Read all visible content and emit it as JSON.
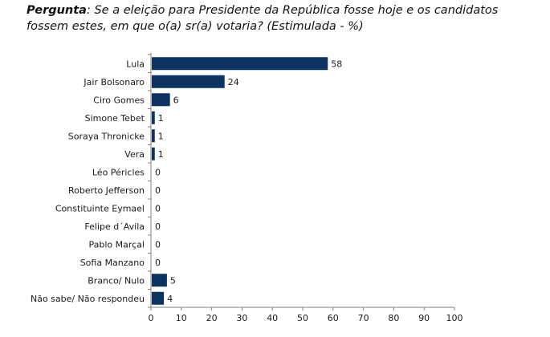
{
  "question": {
    "lead": "Pergunta",
    "text": ": Se a eleição para Presidente da República fosse hoje e os candidatos fossem estes, em que o(a) sr(a) votaria? (Estimulada - %)"
  },
  "chart_data": {
    "type": "bar",
    "orientation": "horizontal",
    "categories": [
      "Lula",
      "Jair Bolsonaro",
      "Ciro Gomes",
      "Simone Tebet",
      "Soraya Thronicke",
      "Vera",
      "Léo Péricles",
      "Roberto Jefferson",
      "Constituinte Eymael",
      "Felipe d´Avila",
      "Pablo Marçal",
      "Sofia Manzano",
      "Branco/ Nulo",
      "Não sabe/ Não respondeu"
    ],
    "values": [
      58,
      24,
      6,
      1,
      1,
      1,
      0,
      0,
      0,
      0,
      0,
      0,
      5,
      4
    ],
    "xlim": [
      0,
      100
    ],
    "xticks": [
      0,
      10,
      20,
      30,
      40,
      50,
      60,
      70,
      80,
      90,
      100
    ],
    "bar_color": "#0d3461",
    "grid": false
  }
}
